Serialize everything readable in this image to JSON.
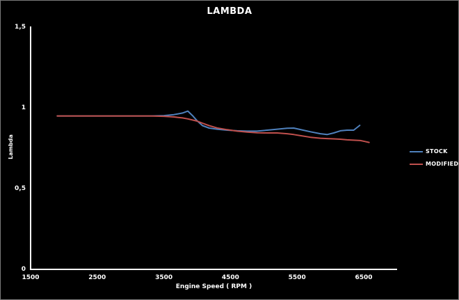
{
  "chart_data": {
    "type": "line",
    "title": "LAMBDA",
    "xlabel": "Engine Speed ( RPM )",
    "ylabel": "Lambda",
    "xlim": [
      1500,
      7000
    ],
    "ylim": [
      0,
      1.5
    ],
    "grid": false,
    "background_color": "#000000",
    "axis_color": "#ffffff",
    "text_color": "#ffffff",
    "legend_position": "right",
    "x_ticks": [
      {
        "value": 1500,
        "label": "1500"
      },
      {
        "value": 2500,
        "label": "2500"
      },
      {
        "value": 3500,
        "label": "3500"
      },
      {
        "value": 4500,
        "label": "4500"
      },
      {
        "value": 5500,
        "label": "5500"
      },
      {
        "value": 6500,
        "label": "6500"
      }
    ],
    "y_ticks": [
      {
        "value": 0,
        "label": "0"
      },
      {
        "value": 0.5,
        "label": "0,5"
      },
      {
        "value": 1,
        "label": "1"
      },
      {
        "value": 1.5,
        "label": "1,5"
      }
    ],
    "series": [
      {
        "name": "STOCK",
        "color": "#4F81BD",
        "points": [
          [
            1900,
            0.95
          ],
          [
            2100,
            0.95
          ],
          [
            2300,
            0.95
          ],
          [
            2500,
            0.95
          ],
          [
            2700,
            0.95
          ],
          [
            2900,
            0.95
          ],
          [
            3100,
            0.95
          ],
          [
            3300,
            0.95
          ],
          [
            3500,
            0.952
          ],
          [
            3650,
            0.958
          ],
          [
            3780,
            0.968
          ],
          [
            3860,
            0.98
          ],
          [
            3930,
            0.952
          ],
          [
            4000,
            0.92
          ],
          [
            4080,
            0.89
          ],
          [
            4180,
            0.875
          ],
          [
            4300,
            0.868
          ],
          [
            4450,
            0.862
          ],
          [
            4600,
            0.858
          ],
          [
            4750,
            0.856
          ],
          [
            4900,
            0.856
          ],
          [
            5050,
            0.862
          ],
          [
            5200,
            0.868
          ],
          [
            5350,
            0.874
          ],
          [
            5450,
            0.875
          ],
          [
            5550,
            0.866
          ],
          [
            5700,
            0.852
          ],
          [
            5850,
            0.84
          ],
          [
            5950,
            0.835
          ],
          [
            6050,
            0.845
          ],
          [
            6150,
            0.858
          ],
          [
            6250,
            0.862
          ],
          [
            6350,
            0.862
          ],
          [
            6440,
            0.892
          ]
        ]
      },
      {
        "name": "MODIFIED",
        "color": "#C0504D",
        "points": [
          [
            1900,
            0.95
          ],
          [
            2100,
            0.95
          ],
          [
            2300,
            0.95
          ],
          [
            2500,
            0.95
          ],
          [
            2700,
            0.95
          ],
          [
            2900,
            0.95
          ],
          [
            3100,
            0.95
          ],
          [
            3300,
            0.95
          ],
          [
            3500,
            0.948
          ],
          [
            3650,
            0.944
          ],
          [
            3780,
            0.938
          ],
          [
            3860,
            0.932
          ],
          [
            3930,
            0.925
          ],
          [
            4000,
            0.918
          ],
          [
            4080,
            0.905
          ],
          [
            4180,
            0.89
          ],
          [
            4300,
            0.876
          ],
          [
            4450,
            0.865
          ],
          [
            4600,
            0.856
          ],
          [
            4750,
            0.85
          ],
          [
            4900,
            0.846
          ],
          [
            5050,
            0.845
          ],
          [
            5200,
            0.845
          ],
          [
            5350,
            0.84
          ],
          [
            5450,
            0.835
          ],
          [
            5550,
            0.828
          ],
          [
            5700,
            0.818
          ],
          [
            5850,
            0.812
          ],
          [
            5950,
            0.81
          ],
          [
            6050,
            0.808
          ],
          [
            6150,
            0.806
          ],
          [
            6250,
            0.802
          ],
          [
            6350,
            0.8
          ],
          [
            6450,
            0.798
          ],
          [
            6520,
            0.792
          ],
          [
            6580,
            0.786
          ]
        ]
      }
    ]
  }
}
